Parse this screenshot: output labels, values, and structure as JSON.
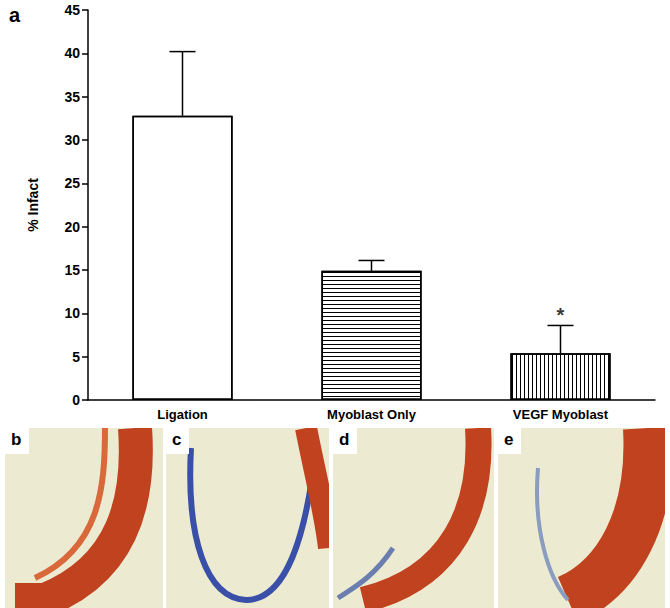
{
  "chart_data": {
    "type": "bar",
    "title": "a",
    "categories": [
      "Ligation",
      "Myoblast Only",
      "VEGF Myoblast"
    ],
    "values": [
      32.8,
      14.9,
      5.4
    ],
    "errors": [
      7.4,
      1.2,
      3.2
    ],
    "color": "#ffffff",
    "y_label": "% Infact",
    "ylim": [
      0,
      45
    ],
    "yticks": [
      0,
      5,
      10,
      15,
      20,
      25,
      30,
      35,
      40,
      45
    ],
    "grid": false,
    "annotations": [
      {
        "text": "*",
        "category": "VEGF Myoblast"
      }
    ]
  },
  "image_panels": [
    "b",
    "c",
    "d",
    "e"
  ]
}
